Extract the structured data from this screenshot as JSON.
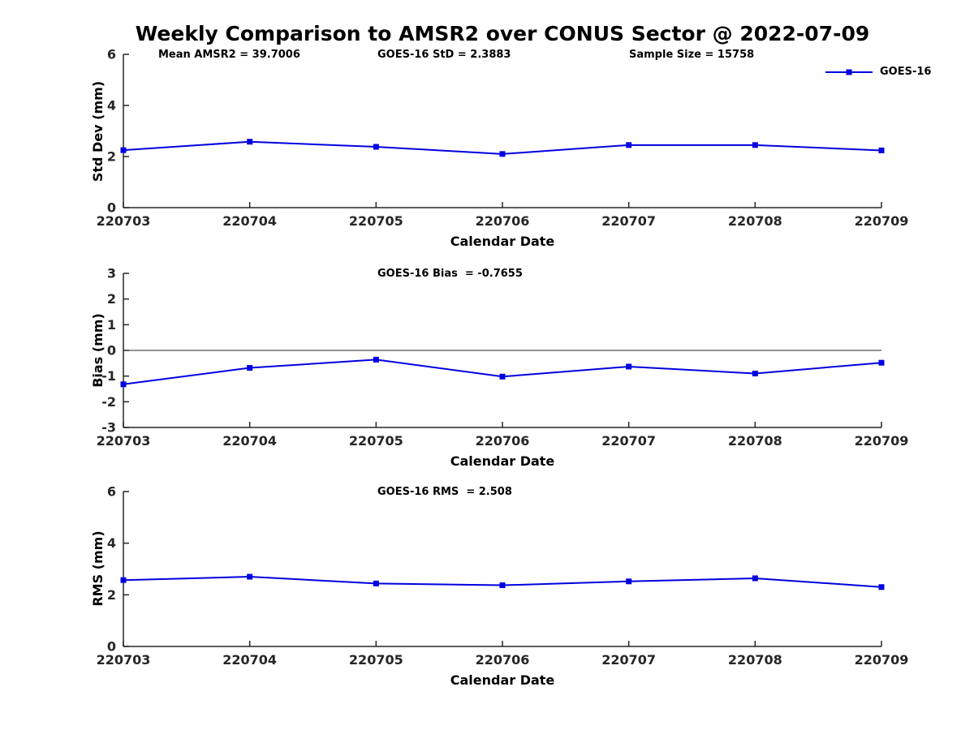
{
  "page": {
    "title": "Weekly Comparison to AMSR2 over CONUS Sector @ 2022-07-09"
  },
  "colors": {
    "series": "#0000e0",
    "axis": "#262626",
    "background": "#ffffff"
  },
  "legend": {
    "label": "GOES-16"
  },
  "chart_data": [
    {
      "type": "line",
      "name": "std-dev",
      "annotations": [
        "Mean AMSR2 = 39.7006",
        "GOES-16 StD = 2.3883",
        "Sample Size = 15758"
      ],
      "categories": [
        "220703",
        "220704",
        "220705",
        "220706",
        "220707",
        "220708",
        "220709"
      ],
      "series": [
        {
          "name": "GOES-16",
          "values": [
            2.25,
            2.58,
            2.38,
            2.1,
            2.45,
            2.45,
            2.24
          ]
        }
      ],
      "xlabel": "Calendar Date",
      "ylabel": "Std Dev (mm)",
      "ylim": [
        0,
        6
      ],
      "yticks": [
        0,
        2,
        4,
        6
      ],
      "zero_line": false,
      "grid": false,
      "legend_position": "top-right",
      "marker": "square"
    },
    {
      "type": "line",
      "name": "bias",
      "annotations": [
        "GOES-16 Bias  = -0.7655"
      ],
      "categories": [
        "220703",
        "220704",
        "220705",
        "220706",
        "220707",
        "220708",
        "220709"
      ],
      "series": [
        {
          "name": "GOES-16",
          "values": [
            -1.32,
            -0.68,
            -0.36,
            -1.02,
            -0.63,
            -0.9,
            -0.48
          ]
        }
      ],
      "xlabel": "Calendar Date",
      "ylabel": "Bias (mm)",
      "ylim": [
        -3,
        3
      ],
      "yticks": [
        3,
        2,
        1,
        0,
        -1,
        -2,
        -3
      ],
      "zero_line": true,
      "grid": false,
      "marker": "square"
    },
    {
      "type": "line",
      "name": "rms",
      "annotations": [
        "GOES-16 RMS  = 2.508"
      ],
      "categories": [
        "220703",
        "220704",
        "220705",
        "220706",
        "220707",
        "220708",
        "220709"
      ],
      "series": [
        {
          "name": "GOES-16",
          "values": [
            2.57,
            2.7,
            2.44,
            2.37,
            2.52,
            2.64,
            2.3
          ]
        }
      ],
      "xlabel": "Calendar Date",
      "ylabel": "RMS (mm)",
      "ylim": [
        0,
        6
      ],
      "yticks": [
        0,
        2,
        4,
        6
      ],
      "zero_line": false,
      "grid": false,
      "marker": "square"
    }
  ]
}
